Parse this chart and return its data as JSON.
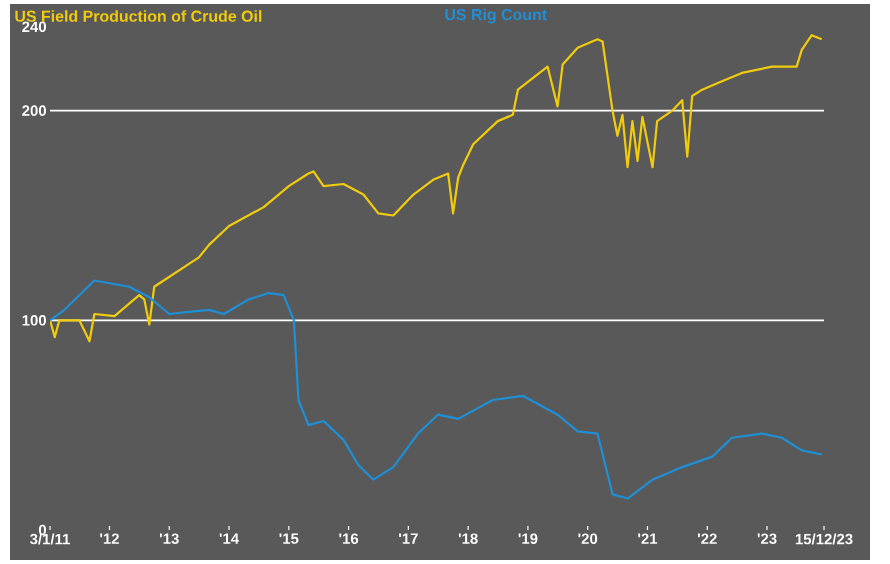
{
  "chart_data": {
    "type": "line",
    "x": [
      "2011-01-03",
      "2011-02",
      "2011-03",
      "2011-07",
      "2011-09",
      "2011-10",
      "2012-02",
      "2012-07",
      "2012-08",
      "2012-09",
      "2012-10",
      "2013-07",
      "2013-09",
      "2014-01",
      "2014-08",
      "2015-01",
      "2015-05",
      "2015-06",
      "2015-08",
      "2015-12",
      "2016-04",
      "2016-07",
      "2016-10",
      "2017-02",
      "2017-06",
      "2017-09",
      "2017-10",
      "2017-11",
      "2017-12",
      "2018-02",
      "2018-07",
      "2018-10",
      "2018-11",
      "2019-05",
      "2019-07",
      "2019-08",
      "2019-11",
      "2020-03",
      "2020-04",
      "2020-06",
      "2020-07",
      "2020-08",
      "2020-09",
      "2020-10",
      "2020-11",
      "2020-12",
      "2021-02",
      "2021-03",
      "2021-06",
      "2021-08",
      "2021-09",
      "2021-10",
      "2021-12",
      "2022-04",
      "2022-08",
      "2023-02",
      "2023-07",
      "2023-08",
      "2023-10",
      "2023-12"
    ],
    "series": [
      {
        "name": "US Field Production of Crude Oil",
        "color": "#f2cc0c",
        "values": [
          100,
          92,
          100,
          100,
          90,
          103,
          102,
          112,
          110,
          98,
          116,
          130,
          136,
          145,
          154,
          164,
          170,
          171,
          164,
          165,
          160,
          151,
          150,
          160,
          167,
          170,
          151,
          168,
          174,
          184,
          195,
          198,
          210,
          221,
          202,
          222,
          230,
          234,
          233,
          200,
          188,
          198,
          173,
          195,
          176,
          197,
          173,
          195,
          200,
          205,
          178,
          207,
          210,
          214,
          218,
          221,
          221,
          229,
          236,
          234
        ]
      },
      {
        "name": "US Rig Count",
        "color": "#1f8fd6",
        "x": [
          "2011-01-03",
          "2011-04",
          "2011-10",
          "2012-05",
          "2012-09",
          "2013-01",
          "2013-05",
          "2013-09",
          "2013-12",
          "2014-05",
          "2014-09",
          "2014-12",
          "2015-02",
          "2015-03",
          "2015-05",
          "2015-08",
          "2015-12",
          "2016-03",
          "2016-06",
          "2016-10",
          "2017-03",
          "2017-07",
          "2017-11",
          "2018-06",
          "2018-12",
          "2019-07",
          "2019-11",
          "2020-03",
          "2020-06",
          "2020-09",
          "2021-02",
          "2021-08",
          "2022-02",
          "2022-06",
          "2022-12",
          "2023-04",
          "2023-08",
          "2023-12"
        ],
        "values": [
          100,
          105,
          119,
          116,
          111,
          103,
          104,
          105,
          103,
          110,
          113,
          112,
          100,
          62,
          50,
          52,
          43,
          31,
          24,
          30,
          46,
          55,
          53,
          62,
          64,
          55,
          47,
          46,
          17,
          15,
          24,
          30,
          35,
          44,
          46,
          44,
          38,
          36
        ]
      }
    ],
    "xlim": [
      "2011-01-03",
      "2023-12-15"
    ],
    "xticks": [
      {
        "value": "2011-01-03",
        "label": "3/1/11"
      },
      {
        "value": "2012-01-01",
        "label": "'12"
      },
      {
        "value": "2013-01-01",
        "label": "'13"
      },
      {
        "value": "2014-01-01",
        "label": "'14"
      },
      {
        "value": "2015-01-01",
        "label": "'15"
      },
      {
        "value": "2016-01-01",
        "label": "'16"
      },
      {
        "value": "2017-01-01",
        "label": "'17"
      },
      {
        "value": "2018-01-01",
        "label": "'18"
      },
      {
        "value": "2019-01-01",
        "label": "'19"
      },
      {
        "value": "2020-01-01",
        "label": "'20"
      },
      {
        "value": "2021-01-01",
        "label": "'21"
      },
      {
        "value": "2022-01-01",
        "label": "'22"
      },
      {
        "value": "2023-01-01",
        "label": "'23"
      },
      {
        "value": "2023-12-15",
        "label": "15/12/23"
      }
    ],
    "ylim": [
      0,
      248
    ],
    "yticks": [
      0,
      100,
      200,
      240
    ],
    "ref_lines": [
      {
        "axis": "y",
        "value": 100,
        "color": "#ffffff"
      },
      {
        "axis": "y",
        "value": 200,
        "color": "#ffffff"
      }
    ],
    "legend": "top"
  }
}
